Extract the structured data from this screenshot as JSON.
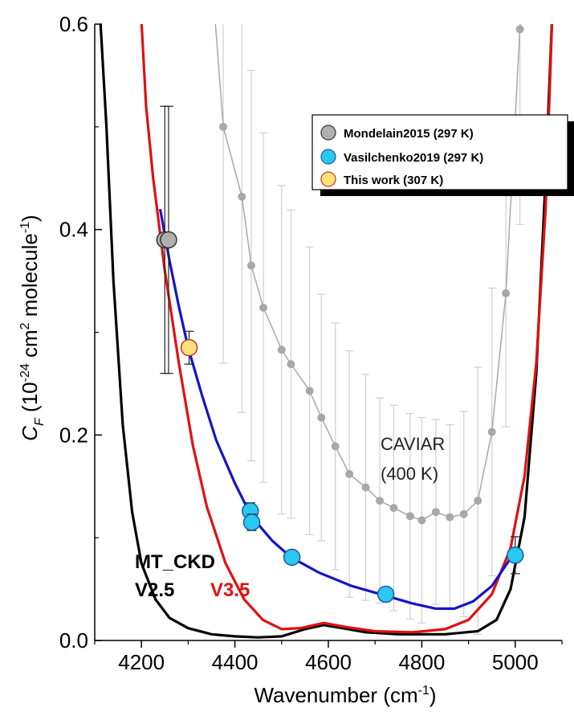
{
  "chart_data": {
    "type": "scatter",
    "xlabel": "Wavenumber (cm",
    "xlabel_sup": "-1",
    "xlabel_tail": ")",
    "ylabel_c": "C",
    "ylabel_sub": "F",
    "ylabel_rest1": " (10",
    "ylabel_sup1": "-24",
    "ylabel_rest2": " cm",
    "ylabel_sup2": "2",
    "ylabel_rest3": " molecule",
    "ylabel_sup3": "-1",
    "ylabel_tail": ")",
    "xlim": [
      4100,
      5100
    ],
    "ylim": [
      0.0,
      0.6
    ],
    "x_ticks": [
      4200,
      4400,
      4600,
      4800,
      5000
    ],
    "x_tick_labels": [
      "4200",
      "4400",
      "4600",
      "4800",
      "5000"
    ],
    "y_ticks": [
      0.0,
      0.2,
      0.4,
      0.6
    ],
    "y_tick_labels": [
      "0.0",
      "0.2",
      "0.4",
      "0.6"
    ],
    "legend_position": "top-right",
    "legend": [
      {
        "label": "Mondelain2015 (297 K)",
        "color": "#b0b0b0"
      },
      {
        "label": "Vasilchenko2019 (297 K)",
        "color": "#29c8f0"
      },
      {
        "label": "This work (307 K)",
        "color": "#ffe37a"
      }
    ],
    "colors": {
      "black_curve": "#000000",
      "red_curve": "#e01010",
      "blue_curve": "#1414c8",
      "caviar": "#a8a8a8",
      "caviar_errbar": "#cfcfcf"
    },
    "series": [
      {
        "name": "Mondelain2015 (297 K)",
        "kind": "markers",
        "points": [
          {
            "x": 4250,
            "y": 0.39,
            "err": 0.13
          },
          {
            "x": 4258,
            "y": 0.39,
            "err": 0.13
          }
        ]
      },
      {
        "name": "Vasilchenko2019 (297 K)",
        "kind": "markers",
        "points": [
          {
            "x": 4433,
            "y": 0.126,
            "err": 0.008
          },
          {
            "x": 4436,
            "y": 0.115,
            "err": 0.008
          },
          {
            "x": 4522,
            "y": 0.081,
            "err": 0.006
          },
          {
            "x": 4723,
            "y": 0.045,
            "err": 0.006
          },
          {
            "x": 5000,
            "y": 0.083,
            "err": 0.018
          }
        ]
      },
      {
        "name": "This work (307 K)",
        "kind": "markers",
        "points": [
          {
            "x": 4302,
            "y": 0.285,
            "err": 0.016
          }
        ]
      },
      {
        "name": "CAVIAR (400 K)",
        "kind": "dotted-line",
        "points": [
          {
            "x": 4375,
            "y": 0.5,
            "err": 0.23
          },
          {
            "x": 4415,
            "y": 0.432,
            "err": 0.21
          },
          {
            "x": 4435,
            "y": 0.365,
            "err": 0.19
          },
          {
            "x": 4461,
            "y": 0.324,
            "err": 0.17
          },
          {
            "x": 4500,
            "y": 0.283,
            "err": 0.16
          },
          {
            "x": 4520,
            "y": 0.269,
            "err": 0.15
          },
          {
            "x": 4560,
            "y": 0.243,
            "err": 0.14
          },
          {
            "x": 4585,
            "y": 0.217,
            "err": 0.12
          },
          {
            "x": 4615,
            "y": 0.189,
            "err": 0.12
          },
          {
            "x": 4645,
            "y": 0.162,
            "err": 0.12
          },
          {
            "x": 4680,
            "y": 0.149,
            "err": 0.11
          },
          {
            "x": 4710,
            "y": 0.136,
            "err": 0.1
          },
          {
            "x": 4740,
            "y": 0.129,
            "err": 0.1
          },
          {
            "x": 4775,
            "y": 0.121,
            "err": 0.1
          },
          {
            "x": 4800,
            "y": 0.117,
            "err": 0.1
          },
          {
            "x": 4830,
            "y": 0.125,
            "err": 0.09
          },
          {
            "x": 4860,
            "y": 0.12,
            "err": 0.09
          },
          {
            "x": 4890,
            "y": 0.123,
            "err": 0.1
          },
          {
            "x": 4920,
            "y": 0.136,
            "err": 0.13
          },
          {
            "x": 4950,
            "y": 0.203,
            "err": 0.14
          },
          {
            "x": 4980,
            "y": 0.338,
            "err": 0.13
          },
          {
            "x": 5010,
            "y": 0.595,
            "err": 0.19
          }
        ]
      },
      {
        "name": "V2.5",
        "kind": "line",
        "points": [
          {
            "x": 4110,
            "y": 0.62
          },
          {
            "x": 4125,
            "y": 0.5
          },
          {
            "x": 4140,
            "y": 0.35
          },
          {
            "x": 4160,
            "y": 0.21
          },
          {
            "x": 4180,
            "y": 0.125
          },
          {
            "x": 4200,
            "y": 0.075
          },
          {
            "x": 4230,
            "y": 0.04
          },
          {
            "x": 4260,
            "y": 0.022
          },
          {
            "x": 4300,
            "y": 0.012
          },
          {
            "x": 4350,
            "y": 0.006
          },
          {
            "x": 4400,
            "y": 0.004
          },
          {
            "x": 4450,
            "y": 0.003
          },
          {
            "x": 4500,
            "y": 0.004
          },
          {
            "x": 4550,
            "y": 0.011
          },
          {
            "x": 4590,
            "y": 0.015
          },
          {
            "x": 4630,
            "y": 0.012
          },
          {
            "x": 4680,
            "y": 0.008
          },
          {
            "x": 4750,
            "y": 0.006
          },
          {
            "x": 4850,
            "y": 0.006
          },
          {
            "x": 4920,
            "y": 0.009
          },
          {
            "x": 4960,
            "y": 0.02
          },
          {
            "x": 4990,
            "y": 0.05
          },
          {
            "x": 5020,
            "y": 0.12
          },
          {
            "x": 5045,
            "y": 0.26
          },
          {
            "x": 5065,
            "y": 0.45
          },
          {
            "x": 5080,
            "y": 0.62
          }
        ]
      },
      {
        "name": "V3.5",
        "kind": "line",
        "points": [
          {
            "x": 4198,
            "y": 0.62
          },
          {
            "x": 4210,
            "y": 0.52
          },
          {
            "x": 4225,
            "y": 0.45
          },
          {
            "x": 4250,
            "y": 0.36
          },
          {
            "x": 4280,
            "y": 0.27
          },
          {
            "x": 4310,
            "y": 0.19
          },
          {
            "x": 4340,
            "y": 0.13
          },
          {
            "x": 4380,
            "y": 0.075
          },
          {
            "x": 4420,
            "y": 0.04
          },
          {
            "x": 4460,
            "y": 0.02
          },
          {
            "x": 4500,
            "y": 0.011
          },
          {
            "x": 4540,
            "y": 0.012
          },
          {
            "x": 4590,
            "y": 0.017
          },
          {
            "x": 4640,
            "y": 0.013
          },
          {
            "x": 4700,
            "y": 0.009
          },
          {
            "x": 4780,
            "y": 0.008
          },
          {
            "x": 4850,
            "y": 0.011
          },
          {
            "x": 4900,
            "y": 0.02
          },
          {
            "x": 4950,
            "y": 0.045
          },
          {
            "x": 4990,
            "y": 0.09
          },
          {
            "x": 5020,
            "y": 0.16
          },
          {
            "x": 5045,
            "y": 0.27
          },
          {
            "x": 5065,
            "y": 0.42
          },
          {
            "x": 5080,
            "y": 0.62
          }
        ]
      },
      {
        "name": "",
        "kind": "fit-line",
        "points": [
          {
            "x": 4240,
            "y": 0.42
          },
          {
            "x": 4260,
            "y": 0.37
          },
          {
            "x": 4280,
            "y": 0.325
          },
          {
            "x": 4300,
            "y": 0.285
          },
          {
            "x": 4330,
            "y": 0.238
          },
          {
            "x": 4360,
            "y": 0.195
          },
          {
            "x": 4400,
            "y": 0.153
          },
          {
            "x": 4435,
            "y": 0.121
          },
          {
            "x": 4480,
            "y": 0.097
          },
          {
            "x": 4520,
            "y": 0.081
          },
          {
            "x": 4580,
            "y": 0.066
          },
          {
            "x": 4650,
            "y": 0.053
          },
          {
            "x": 4720,
            "y": 0.044
          },
          {
            "x": 4780,
            "y": 0.036
          },
          {
            "x": 4830,
            "y": 0.031
          },
          {
            "x": 4870,
            "y": 0.031
          },
          {
            "x": 4910,
            "y": 0.038
          },
          {
            "x": 4950,
            "y": 0.053
          },
          {
            "x": 4990,
            "y": 0.08
          },
          {
            "x": 5000,
            "y": 0.088
          }
        ]
      }
    ],
    "annotations": {
      "caviar_line1": "CAVIAR",
      "caviar_line2": "(400 K)",
      "mtckd": "MT_CKD",
      "v25": "V2.5",
      "v35": "V3.5"
    }
  }
}
